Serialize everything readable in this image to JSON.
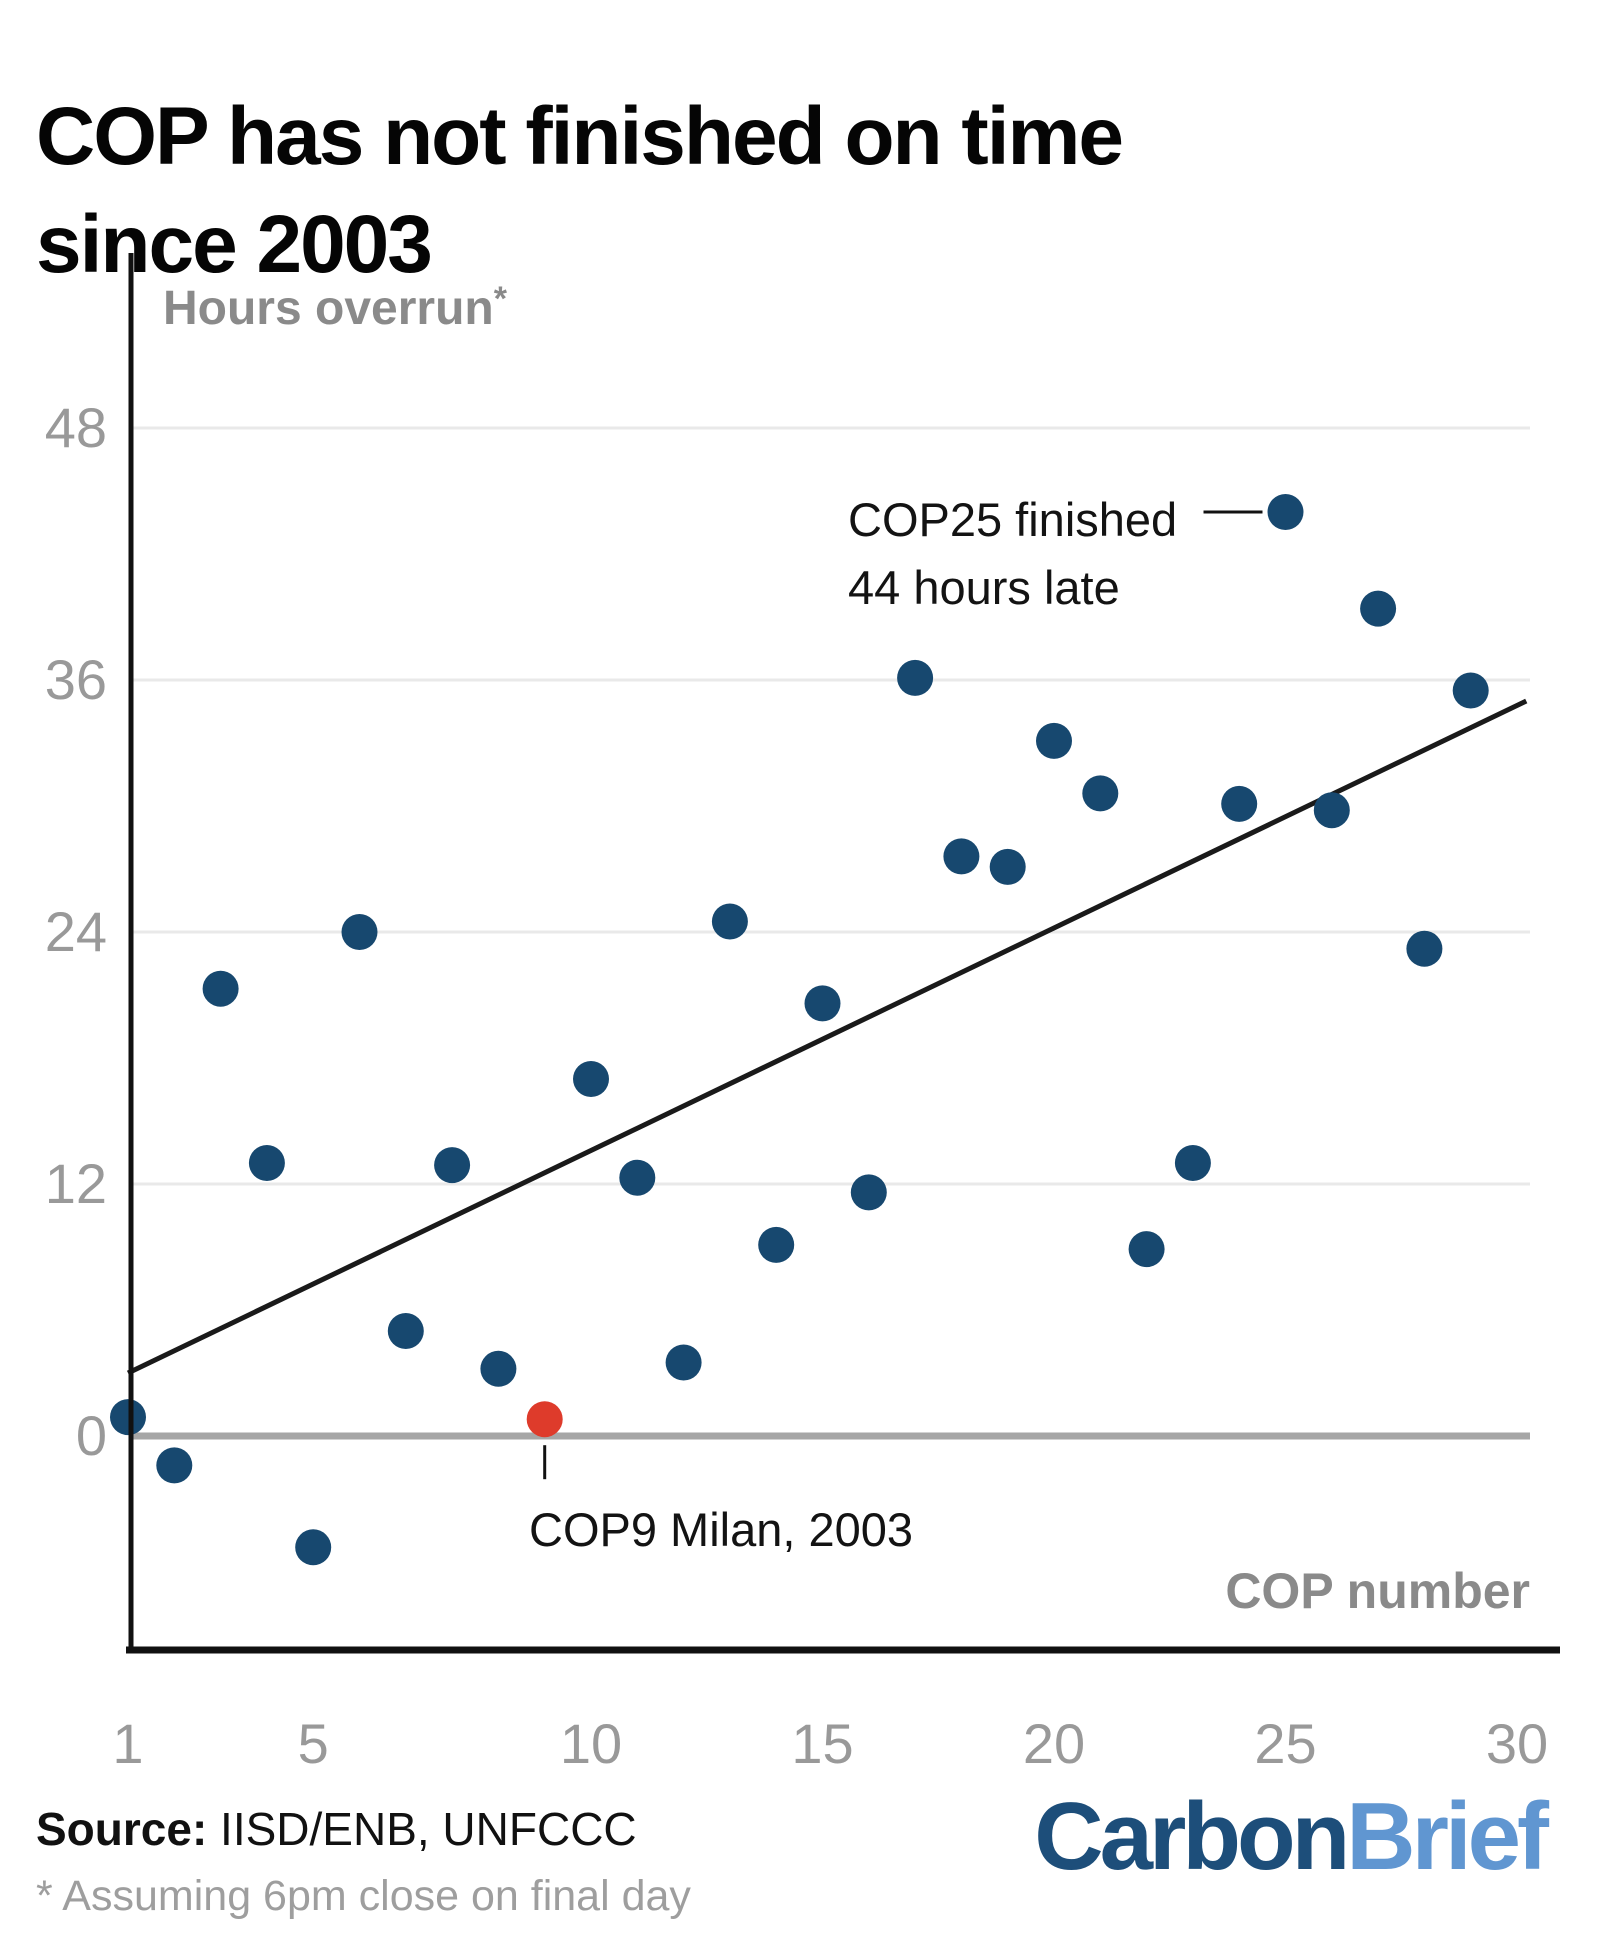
{
  "title": "COP has not finished on time\nsince 2003",
  "y_axis": {
    "label": "Hours overrun",
    "asterisk": "*",
    "ticks": [
      48,
      36,
      24,
      12,
      0
    ]
  },
  "x_axis": {
    "label": "COP number",
    "ticks": [
      {
        "label": "1",
        "slot": 1
      },
      {
        "label": "5",
        "slot": 5
      },
      {
        "label": "10",
        "slot": 11
      },
      {
        "label": "15",
        "slot": 16
      },
      {
        "label": "20",
        "slot": 21
      },
      {
        "label": "25",
        "slot": 26
      },
      {
        "label": "30",
        "slot": 31
      }
    ]
  },
  "annotations": {
    "cop25_line1": "COP25 finished",
    "cop25_line2": "44 hours late",
    "cop9": "COP9 Milan, 2003"
  },
  "source": {
    "label": "Source:",
    "text": " IISD/ENB, UNFCCC",
    "footnote": "* Assuming 6pm close on final day"
  },
  "logo": {
    "part1": "Carbon",
    "part2": "Brief"
  },
  "colors": {
    "dot": "#17486f",
    "highlight": "#de3b2b",
    "trend": "#1a1a1a",
    "grid": "#e9e9e9",
    "zero_line": "#a6a6a6",
    "axis": "#111111",
    "tick_text": "#999999",
    "axis_label": "#8a8a8a",
    "logo_dark": "#1d4e7a",
    "logo_light": "#6096d1"
  },
  "chart_data": {
    "type": "scatter",
    "title": "COP has not finished on time since 2003",
    "xlabel": "COP number",
    "ylabel": "Hours overrun (assuming 6pm close on final day)",
    "ylim": [
      -11,
      52
    ],
    "grid": "horizontal-only",
    "legend": "none",
    "trend_line": {
      "slot_start": 1,
      "hours_start": 3.0,
      "slot_end": 31.2,
      "hours_end": 35.0
    },
    "points": [
      {
        "cop": "1",
        "slot": 1,
        "hours": 0.9
      },
      {
        "cop": "2",
        "slot": 2,
        "hours": -1.4
      },
      {
        "cop": "3",
        "slot": 3,
        "hours": 21.3
      },
      {
        "cop": "4",
        "slot": 4,
        "hours": 13.0
      },
      {
        "cop": "5",
        "slot": 5,
        "hours": -5.3
      },
      {
        "cop": "6",
        "slot": 6,
        "hours": 24.0
      },
      {
        "cop": "6bis",
        "slot": 7,
        "hours": 5.0
      },
      {
        "cop": "7",
        "slot": 8,
        "hours": 12.9
      },
      {
        "cop": "8",
        "slot": 9,
        "hours": 3.2
      },
      {
        "cop": "9",
        "slot": 10,
        "hours": 0.8,
        "highlight": true,
        "annotation": "cop9"
      },
      {
        "cop": "10",
        "slot": 11,
        "hours": 17.0
      },
      {
        "cop": "11",
        "slot": 12,
        "hours": 12.3
      },
      {
        "cop": "12",
        "slot": 13,
        "hours": 3.5
      },
      {
        "cop": "13",
        "slot": 14,
        "hours": 24.5
      },
      {
        "cop": "14",
        "slot": 15,
        "hours": 9.1
      },
      {
        "cop": "15",
        "slot": 16,
        "hours": 20.6
      },
      {
        "cop": "16",
        "slot": 17,
        "hours": 11.6
      },
      {
        "cop": "17",
        "slot": 18,
        "hours": 36.1
      },
      {
        "cop": "18",
        "slot": 19,
        "hours": 27.6
      },
      {
        "cop": "19",
        "slot": 20,
        "hours": 27.1
      },
      {
        "cop": "20",
        "slot": 21,
        "hours": 33.1
      },
      {
        "cop": "21",
        "slot": 22,
        "hours": 30.6
      },
      {
        "cop": "22",
        "slot": 23,
        "hours": 8.9
      },
      {
        "cop": "23",
        "slot": 24,
        "hours": 13.0
      },
      {
        "cop": "24",
        "slot": 25,
        "hours": 30.1
      },
      {
        "cop": "25",
        "slot": 26,
        "hours": 44.0,
        "annotation": "cop25"
      },
      {
        "cop": "26",
        "slot": 27,
        "hours": 29.8
      },
      {
        "cop": "27",
        "slot": 28,
        "hours": 39.4
      },
      {
        "cop": "28",
        "slot": 29,
        "hours": 23.2
      },
      {
        "cop": "29",
        "slot": 30,
        "hours": 35.5
      }
    ]
  }
}
